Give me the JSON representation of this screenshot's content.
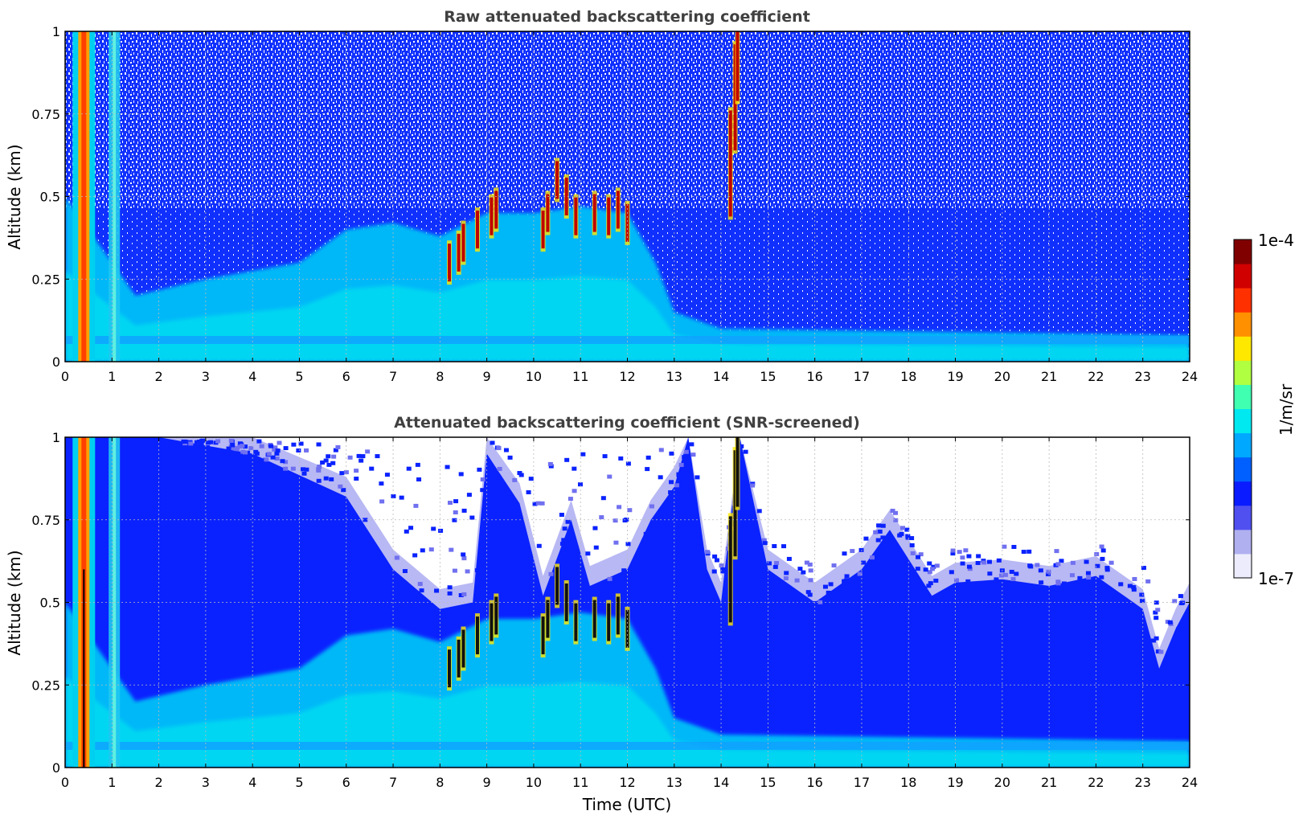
{
  "chart_data": [
    {
      "type": "heatmap",
      "title": "Raw attenuated backscattering coefficient",
      "xlabel": "",
      "ylabel": "Altitude (km)",
      "xlim": [
        0,
        24
      ],
      "ylim": [
        0,
        1
      ],
      "x_ticks": [
        "0",
        "1",
        "2",
        "3",
        "4",
        "5",
        "6",
        "7",
        "8",
        "9",
        "10",
        "11",
        "12",
        "13",
        "14",
        "15",
        "16",
        "17",
        "18",
        "19",
        "20",
        "21",
        "22",
        "23",
        "24"
      ],
      "y_ticks": [
        "0",
        "0.25",
        "0.5",
        "0.75",
        "1"
      ],
      "grid": true,
      "features": {
        "aerosol_layer_top_km": [
          {
            "t": 0,
            "h": 0.5
          },
          {
            "t": 1.5,
            "h": 0.2
          },
          {
            "t": 3,
            "h": 0.25
          },
          {
            "t": 5,
            "h": 0.3
          },
          {
            "t": 6,
            "h": 0.4
          },
          {
            "t": 7,
            "h": 0.42
          },
          {
            "t": 8,
            "h": 0.38
          },
          {
            "t": 9,
            "h": 0.45
          },
          {
            "t": 10,
            "h": 0.45
          },
          {
            "t": 11,
            "h": 0.47
          },
          {
            "t": 12,
            "h": 0.45
          },
          {
            "t": 12.6,
            "h": 0.3
          },
          {
            "t": 13,
            "h": 0.15
          },
          {
            "t": 14,
            "h": 0.1
          },
          {
            "t": 24,
            "h": 0.08
          }
        ],
        "cloud_cells": [
          {
            "t": 8.2,
            "h": 0.3
          },
          {
            "t": 8.4,
            "h": 0.33
          },
          {
            "t": 8.5,
            "h": 0.36
          },
          {
            "t": 8.8,
            "h": 0.4
          },
          {
            "t": 9.1,
            "h": 0.44
          },
          {
            "t": 9.2,
            "h": 0.46
          },
          {
            "t": 10.2,
            "h": 0.4
          },
          {
            "t": 10.3,
            "h": 0.45
          },
          {
            "t": 10.5,
            "h": 0.55
          },
          {
            "t": 10.7,
            "h": 0.5
          },
          {
            "t": 10.9,
            "h": 0.44
          },
          {
            "t": 11.3,
            "h": 0.45
          },
          {
            "t": 11.6,
            "h": 0.44
          },
          {
            "t": 11.8,
            "h": 0.46
          },
          {
            "t": 12.0,
            "h": 0.42
          },
          {
            "t": 14.2,
            "h": 0.6
          },
          {
            "t": 14.3,
            "h": 0.8
          },
          {
            "t": 14.35,
            "h": 0.95
          }
        ],
        "vertical_stripes_utc": [
          0.4,
          1.05
        ]
      }
    },
    {
      "type": "heatmap",
      "title": "Attenuated backscattering coefficient (SNR-screened)",
      "xlabel": "Time (UTC)",
      "ylabel": "Altitude (km)",
      "xlim": [
        0,
        24
      ],
      "ylim": [
        0,
        1
      ],
      "x_ticks": [
        "0",
        "1",
        "2",
        "3",
        "4",
        "5",
        "6",
        "7",
        "8",
        "9",
        "10",
        "11",
        "12",
        "13",
        "14",
        "15",
        "16",
        "17",
        "18",
        "19",
        "20",
        "21",
        "22",
        "23",
        "24"
      ],
      "y_ticks": [
        "0",
        "0.25",
        "0.5",
        "0.75",
        "1"
      ],
      "grid": true,
      "features": {
        "screened_signal_top_km": [
          {
            "t": 0,
            "h": 1.0
          },
          {
            "t": 2,
            "h": 1.0
          },
          {
            "t": 4,
            "h": 0.95
          },
          {
            "t": 6,
            "h": 0.82
          },
          {
            "t": 7,
            "h": 0.6
          },
          {
            "t": 8,
            "h": 0.48
          },
          {
            "t": 8.7,
            "h": 0.5
          },
          {
            "t": 9,
            "h": 0.95
          },
          {
            "t": 9.7,
            "h": 0.8
          },
          {
            "t": 10.2,
            "h": 0.52
          },
          {
            "t": 10.8,
            "h": 0.75
          },
          {
            "t": 11.2,
            "h": 0.55
          },
          {
            "t": 12,
            "h": 0.6
          },
          {
            "t": 12.5,
            "h": 0.75
          },
          {
            "t": 13,
            "h": 0.85
          },
          {
            "t": 13.3,
            "h": 1.0
          },
          {
            "t": 13.7,
            "h": 0.6
          },
          {
            "t": 14,
            "h": 0.5
          },
          {
            "t": 14.4,
            "h": 1.0
          },
          {
            "t": 15,
            "h": 0.6
          },
          {
            "t": 16,
            "h": 0.5
          },
          {
            "t": 17,
            "h": 0.6
          },
          {
            "t": 17.6,
            "h": 0.72
          },
          {
            "t": 18.5,
            "h": 0.52
          },
          {
            "t": 19,
            "h": 0.56
          },
          {
            "t": 20,
            "h": 0.57
          },
          {
            "t": 21,
            "h": 0.55
          },
          {
            "t": 22,
            "h": 0.58
          },
          {
            "t": 23,
            "h": 0.48
          },
          {
            "t": 23.35,
            "h": 0.3
          },
          {
            "t": 23.7,
            "h": 0.42
          },
          {
            "t": 24,
            "h": 0.5
          }
        ]
      }
    }
  ],
  "colorbar": {
    "label": "1/m/sr",
    "max_label": "1e-4",
    "min_label": "1e-7",
    "colormap": [
      "#ececfc",
      "#b0b0f0",
      "#5050f0",
      "#0a1cff",
      "#0060ff",
      "#00a8ff",
      "#00e8f0",
      "#40ffb0",
      "#b0ff40",
      "#ffe800",
      "#ff9000",
      "#ff3000",
      "#d00000",
      "#800000"
    ]
  }
}
